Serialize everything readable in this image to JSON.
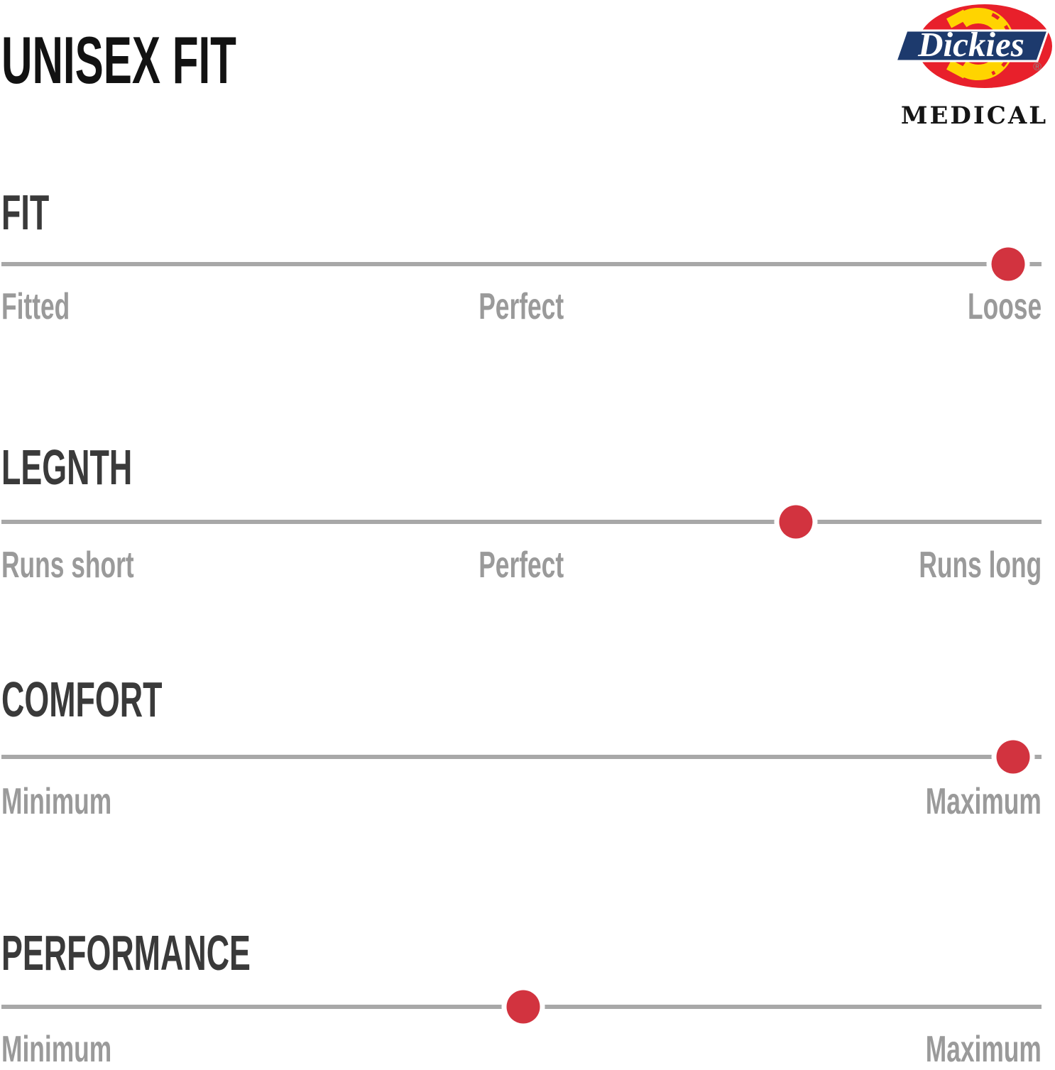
{
  "title": "UNISEX FIT",
  "logo": {
    "brand": "Dickies",
    "registered": "®",
    "sub": "MEDICAL"
  },
  "colors": {
    "accent_red": "#d2333f",
    "logo_red": "#e8202b",
    "logo_yellow": "#ffd400",
    "logo_navy": "#1d3a6d",
    "track_gray": "#a8a8a8",
    "label_gray": "#9a9a9a",
    "heading_dark": "#3a3a3a"
  },
  "rows": [
    {
      "heading": "FIT",
      "left": "Fitted",
      "middle": "Perfect",
      "right": "Loose",
      "dot_percent": 96.8
    },
    {
      "heading": "LEGNTH",
      "left": "Runs short",
      "middle": "Perfect",
      "right": "Runs long",
      "dot_percent": 76.4
    },
    {
      "heading": "COMFORT",
      "left": "Minimum",
      "middle": "",
      "right": "Maximum",
      "dot_percent": 97.3
    },
    {
      "heading": "PERFORMANCE",
      "left": "Minimum",
      "middle": "",
      "right": "Maximum",
      "dot_percent": 50.2
    }
  ],
  "chart_data": {
    "type": "dot-scale",
    "title": "UNISEX FIT",
    "marker": {
      "shape": "circle",
      "color": "#d2333f"
    },
    "scales": [
      {
        "label": "FIT",
        "min_label": "Fitted",
        "mid_label": "Perfect",
        "max_label": "Loose",
        "value_percent": 97
      },
      {
        "label": "LEGNTH",
        "min_label": "Runs short",
        "mid_label": "Perfect",
        "max_label": "Runs long",
        "value_percent": 76
      },
      {
        "label": "COMFORT",
        "min_label": "Minimum",
        "mid_label": "",
        "max_label": "Maximum",
        "value_percent": 97
      },
      {
        "label": "PERFORMANCE",
        "min_label": "Minimum",
        "mid_label": "",
        "max_label": "Maximum",
        "value_percent": 50
      }
    ]
  }
}
